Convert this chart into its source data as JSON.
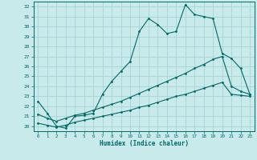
{
  "xlabel": "Humidex (Indice chaleur)",
  "bg_color": "#c8eaea",
  "grid_color": "#a8d4d4",
  "line_color": "#006868",
  "xlim": [
    -0.5,
    23.5
  ],
  "ylim": [
    19.5,
    32.5
  ],
  "yticks": [
    20,
    21,
    22,
    23,
    24,
    25,
    26,
    27,
    28,
    29,
    30,
    31,
    32
  ],
  "xticks": [
    0,
    1,
    2,
    3,
    4,
    5,
    6,
    7,
    8,
    9,
    10,
    11,
    12,
    13,
    14,
    15,
    16,
    17,
    18,
    19,
    20,
    21,
    22,
    23
  ],
  "line1_x": [
    0,
    1,
    2,
    3,
    4,
    5,
    6,
    7,
    8,
    9,
    10,
    11,
    12,
    13,
    14,
    15,
    16,
    17,
    18,
    19,
    20,
    21,
    22,
    23
  ],
  "line1_y": [
    22.5,
    21.3,
    20.0,
    19.8,
    21.0,
    21.1,
    21.3,
    23.2,
    24.5,
    25.5,
    26.5,
    29.5,
    30.8,
    30.2,
    29.3,
    29.5,
    32.2,
    31.2,
    31.0,
    30.8,
    27.3,
    26.8,
    25.8,
    23.2
  ],
  "line2_x": [
    0,
    1,
    2,
    3,
    4,
    5,
    6,
    7,
    8,
    9,
    10,
    11,
    12,
    13,
    14,
    15,
    16,
    17,
    18,
    19,
    20,
    21,
    22,
    23
  ],
  "line2_y": [
    21.2,
    20.8,
    20.5,
    20.8,
    21.1,
    21.3,
    21.6,
    21.9,
    22.2,
    22.5,
    22.9,
    23.3,
    23.7,
    24.1,
    24.5,
    24.9,
    25.3,
    25.8,
    26.2,
    26.7,
    27.0,
    24.0,
    23.5,
    23.2
  ],
  "line3_x": [
    0,
    1,
    2,
    3,
    4,
    5,
    6,
    7,
    8,
    9,
    10,
    11,
    12,
    13,
    14,
    15,
    16,
    17,
    18,
    19,
    20,
    21,
    22,
    23
  ],
  "line3_y": [
    20.3,
    20.1,
    19.9,
    20.1,
    20.4,
    20.6,
    20.8,
    21.0,
    21.2,
    21.4,
    21.6,
    21.9,
    22.1,
    22.4,
    22.7,
    23.0,
    23.2,
    23.5,
    23.8,
    24.1,
    24.4,
    23.2,
    23.1,
    23.0
  ]
}
